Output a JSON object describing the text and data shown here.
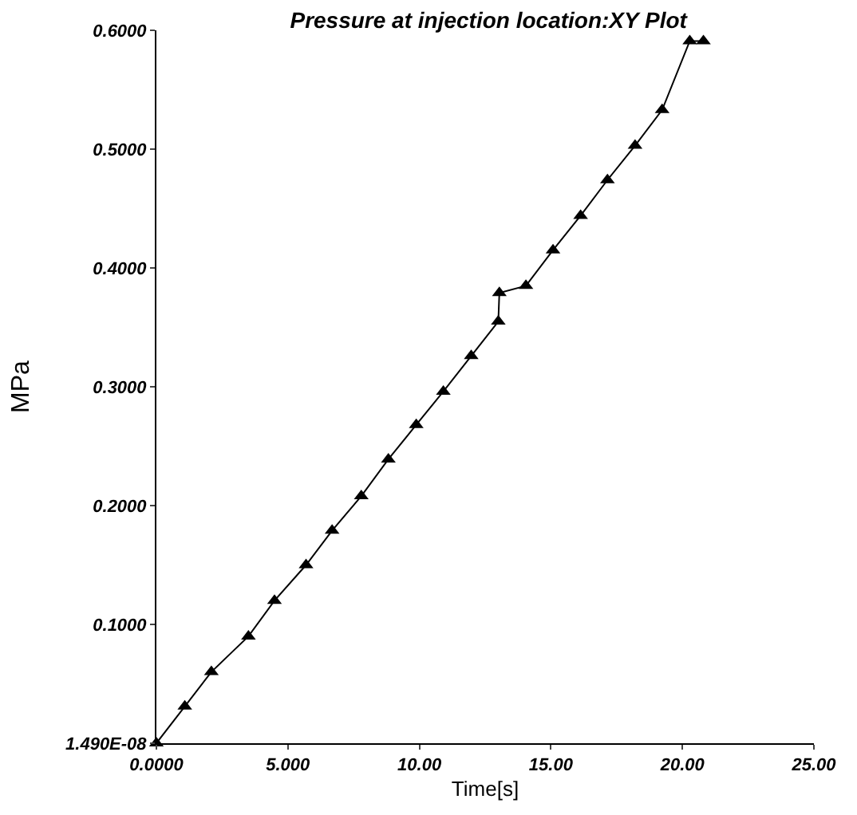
{
  "chart_data": {
    "type": "line",
    "title": "Pressure at injection location:XY Plot",
    "xlabel": "Time[s]",
    "ylabel": "MPa",
    "x": [
      0,
      1.08,
      2.09,
      3.5,
      4.49,
      5.69,
      6.68,
      7.79,
      8.82,
      9.88,
      10.91,
      11.97,
      13.0,
      13.04,
      14.05,
      15.08,
      16.13,
      17.15,
      18.2,
      19.23,
      20.28,
      20.8
    ],
    "series": [
      {
        "color": "#000000",
        "values": [
          0,
          0.031,
          0.06,
          0.09,
          0.12,
          0.15,
          0.179,
          0.208,
          0.239,
          0.268,
          0.296,
          0.326,
          0.355,
          0.379,
          0.385,
          0.415,
          0.444,
          0.474,
          0.503,
          0.533,
          0.591,
          0.591
        ]
      }
    ],
    "xlim": [
      0,
      25
    ],
    "ylim": [
      0,
      0.6
    ],
    "xticks": [
      {
        "value": 0,
        "label": "0.0000"
      },
      {
        "value": 5,
        "label": "5.000"
      },
      {
        "value": 10,
        "label": "10.00"
      },
      {
        "value": 15,
        "label": "15.00"
      },
      {
        "value": 20,
        "label": "20.00"
      },
      {
        "value": 25,
        "label": "25.00"
      }
    ],
    "yticks": [
      {
        "value": 1.49e-08,
        "label": "1.490E-08"
      },
      {
        "value": 0.1,
        "label": "0.1000"
      },
      {
        "value": 0.2,
        "label": "0.2000"
      },
      {
        "value": 0.3,
        "label": "0.3000"
      },
      {
        "value": 0.4,
        "label": "0.4000"
      },
      {
        "value": 0.5,
        "label": "0.5000"
      },
      {
        "value": 0.6,
        "label": "0.6000"
      }
    ],
    "marker": "triangle",
    "line_style": "solid"
  }
}
